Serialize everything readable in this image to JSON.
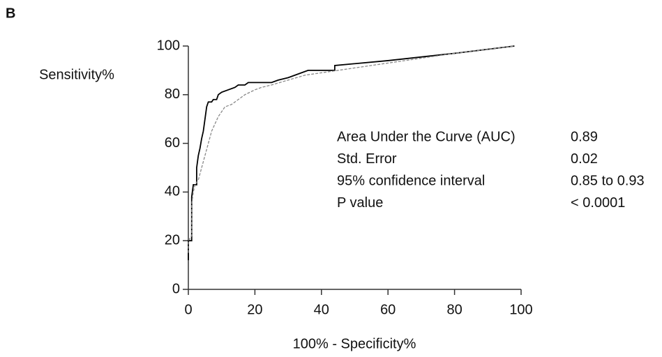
{
  "chart_data": {
    "type": "line",
    "panel_label": "B",
    "x_label": "100% - Specificity%",
    "y_label": "Sensitivity%",
    "xlim": [
      0,
      100
    ],
    "ylim": [
      0,
      100
    ],
    "xticks": [
      0,
      20,
      40,
      60,
      80,
      100
    ],
    "yticks": [
      0,
      20,
      40,
      60,
      80,
      100
    ],
    "series": [
      {
        "color": "#000000",
        "line_style": "solid",
        "x": [
          0,
          0,
          1,
          1,
          1,
          1.5,
          2.5,
          2.5,
          3,
          3.5,
          4,
          4.5,
          5,
          5.5,
          6,
          7,
          7.5,
          8.5,
          9,
          10,
          12,
          14,
          15,
          17,
          18,
          25,
          27,
          30,
          32,
          34,
          36,
          44,
          44,
          60,
          80,
          98
        ],
        "values": [
          12,
          20,
          20,
          25,
          38,
          43,
          43,
          50,
          55,
          58,
          62,
          65,
          70,
          75,
          77,
          77,
          78,
          78,
          80,
          81,
          82,
          83,
          84,
          84,
          85,
          85,
          86,
          87,
          88,
          89,
          90,
          90,
          92,
          94,
          97,
          100
        ]
      },
      {
        "color": "#888888",
        "line_style": "dashed",
        "x": [
          0,
          0,
          1,
          1,
          1.5,
          2,
          3,
          4,
          5,
          6,
          7,
          8,
          9,
          10,
          11,
          13,
          15,
          17,
          20,
          22,
          25,
          30,
          35,
          40,
          50,
          60,
          80,
          98
        ],
        "values": [
          15,
          20,
          22,
          35,
          40,
          43,
          45,
          50,
          55,
          60,
          65,
          68,
          71,
          73,
          75,
          76,
          78,
          80,
          82,
          83,
          84,
          86,
          88,
          89,
          91,
          93,
          97,
          100
        ]
      }
    ],
    "annotation_table": [
      [
        "Area Under the Curve (AUC)",
        "0.89"
      ],
      [
        "Std. Error",
        "0.02"
      ],
      [
        "95% confidence interval",
        "0.85 to 0.93"
      ],
      [
        "P value",
        "< 0.0001"
      ]
    ]
  }
}
